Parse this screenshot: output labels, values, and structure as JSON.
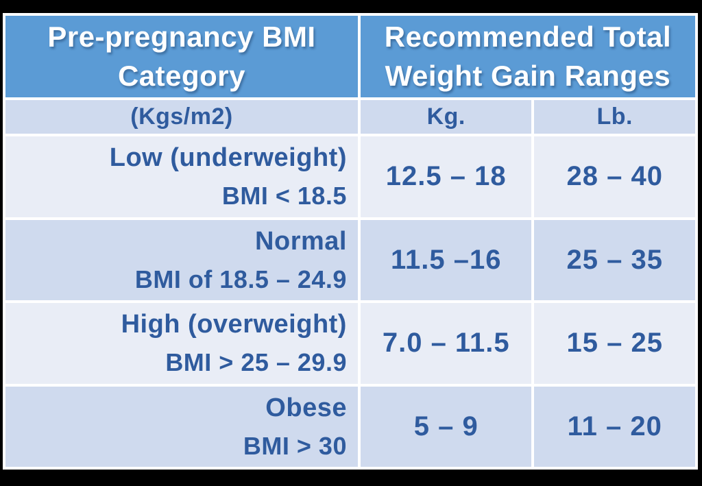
{
  "table": {
    "header": {
      "category_title": "Pre-pregnancy BMI Category",
      "ranges_title": "Recommended Total Weight Gain Ranges"
    },
    "subheader": {
      "units": "(Kgs/m2)",
      "kg": "Kg.",
      "lb": "Lb."
    },
    "rows": [
      {
        "category": "Low (underweight)",
        "detail": "BMI < 18.5",
        "kg": "12.5 – 18",
        "lb": "28 – 40"
      },
      {
        "category": "Normal",
        "detail": "BMI of 18.5 – 24.9",
        "kg": "11.5 –16",
        "lb": "25 – 35"
      },
      {
        "category": "High (overweight)",
        "detail": "BMI > 25 – 29.9",
        "kg": "7.0 – 11.5",
        "lb": "15 – 25"
      },
      {
        "category": "Obese",
        "detail": "BMI > 30",
        "kg": "5 – 9",
        "lb": "11 – 20"
      }
    ],
    "colors": {
      "header_bg": "#5b9bd5",
      "band_dark": "#cfdaee",
      "band_light": "#e9edf6",
      "body_text": "#2f5b9e",
      "header_text": "#ffffff",
      "divider": "#ffffff",
      "frame": "#000000"
    }
  },
  "chart_data": {
    "type": "table",
    "title": "Recommended total weight gain ranges by pre-pregnancy BMI category",
    "columns": [
      "Pre-pregnancy BMI Category (Kgs/m2)",
      "Recommended Total Weight Gain Ranges – Kg.",
      "Recommended Total Weight Gain Ranges – Lb."
    ],
    "rows": [
      [
        "Low (underweight) BMI < 18.5",
        "12.5 – 18",
        "28 – 40"
      ],
      [
        "Normal BMI of 18.5 – 24.9",
        "11.5 –16",
        "25 – 35"
      ],
      [
        "High (overweight) BMI > 25 – 29.9",
        "7.0 – 11.5",
        "15 – 25"
      ],
      [
        "Obese BMI > 30",
        "5 – 9",
        "11 – 20"
      ]
    ],
    "layout": {
      "header_band": "blue",
      "body_bands": "alternating light/dark periwinkle",
      "gridlines": "white gaps between cells"
    }
  }
}
